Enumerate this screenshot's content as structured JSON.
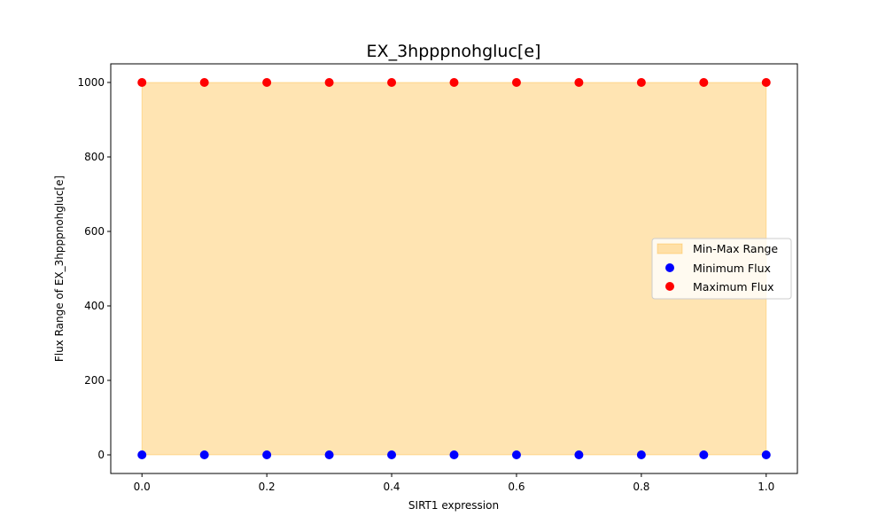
{
  "chart_data": {
    "type": "scatter",
    "title": "EX_3hpppnohgluc[e]",
    "xlabel": "SIRT1 expression",
    "ylabel": "Flux Range of EX_3hpppnohgluc[e]",
    "x": [
      0.0,
      0.1,
      0.2,
      0.3,
      0.4,
      0.5,
      0.6,
      0.7,
      0.8,
      0.9,
      1.0
    ],
    "xlim": [
      -0.05,
      1.05
    ],
    "ylim": [
      -50,
      1050
    ],
    "xticks": [
      0.0,
      0.2,
      0.4,
      0.6,
      0.8,
      1.0
    ],
    "xtick_labels": [
      "0.0",
      "0.2",
      "0.4",
      "0.6",
      "0.8",
      "1.0"
    ],
    "yticks": [
      0,
      200,
      400,
      600,
      800,
      1000
    ],
    "ytick_labels": [
      "0",
      "200",
      "400",
      "600",
      "800",
      "1000"
    ],
    "grid": false,
    "legend_position": "center-right",
    "fill_range": {
      "name": "Min-Max Range",
      "color": "#ffa500",
      "lower": [
        0,
        0,
        0,
        0,
        0,
        0,
        0,
        0,
        0,
        0,
        0
      ],
      "upper": [
        1000,
        1000,
        1000,
        1000,
        1000,
        1000,
        1000,
        1000,
        1000,
        1000,
        1000
      ]
    },
    "series": [
      {
        "name": "Minimum Flux",
        "color": "#0000ff",
        "values": [
          0,
          0,
          0,
          0,
          0,
          0,
          0,
          0,
          0,
          0,
          0
        ]
      },
      {
        "name": "Maximum Flux",
        "color": "#ff0000",
        "values": [
          1000,
          1000,
          1000,
          1000,
          1000,
          1000,
          1000,
          1000,
          1000,
          1000,
          1000
        ]
      }
    ]
  }
}
